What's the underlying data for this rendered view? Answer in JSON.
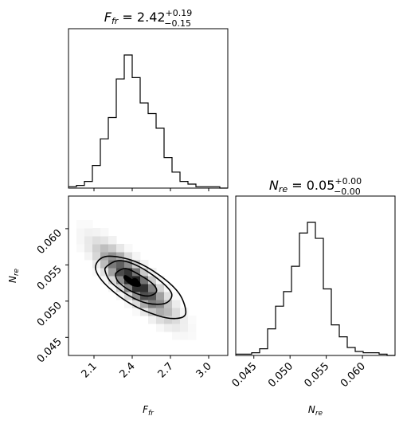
{
  "chart_data": [
    {
      "type": "histogram",
      "panel": "top-left",
      "title_main": "F",
      "title_sub": "fr",
      "title_value": " = 2.42",
      "title_plus": "+0.19",
      "title_minus": "−0.15",
      "x_range": [
        1.9,
        3.15
      ],
      "bin_edges_start": 1.9,
      "bin_width": 0.0625,
      "counts": [
        1,
        2,
        5,
        17,
        37,
        53,
        82,
        100,
        83,
        64,
        56,
        45,
        23,
        12,
        5,
        3,
        1,
        1,
        1,
        0
      ]
    },
    {
      "type": "histogram",
      "panel": "bottom-right",
      "title_main": "N",
      "title_sub": "re",
      "title_value": " = 0.05",
      "title_plus": "+0.00",
      "title_minus": "−0.00",
      "xlabel_main": "N",
      "xlabel_sub": "re",
      "x_range": [
        0.0425,
        0.0645
      ],
      "xticks": [
        "0.045",
        "0.050",
        "0.055",
        "0.060"
      ],
      "xtick_values": [
        0.045,
        0.05,
        0.055,
        0.06
      ],
      "bin_edges_start": 0.0425,
      "bin_width": 0.0011,
      "counts": [
        1,
        1,
        2,
        5,
        20,
        37,
        48,
        67,
        92,
        100,
        88,
        50,
        23,
        14,
        6,
        3,
        2,
        2,
        1,
        0
      ]
    },
    {
      "type": "contour",
      "panel": "bottom-left",
      "xlabel_main": "F",
      "xlabel_sub": "fr",
      "ylabel_main": "N",
      "ylabel_sub": "re",
      "x_range": [
        1.9,
        3.15
      ],
      "y_range": [
        0.0425,
        0.0645
      ],
      "xticks": [
        "2.1",
        "2.4",
        "2.7",
        "3.0"
      ],
      "xtick_values": [
        2.1,
        2.4,
        2.7,
        3.0
      ],
      "yticks": [
        "0.045",
        "0.050",
        "0.055",
        "0.060"
      ],
      "ytick_values": [
        0.045,
        0.05,
        0.055,
        0.06
      ],
      "peak": [
        2.42,
        0.0527
      ],
      "contours": [
        [
          [
            2.42,
            0.0527
          ],
          [
            2.35,
            0.0535
          ],
          [
            2.34,
            0.0531
          ],
          [
            2.4,
            0.0522
          ],
          [
            2.46,
            0.0521
          ],
          [
            2.45,
            0.0527
          ]
        ],
        [
          [
            2.28,
            0.054
          ],
          [
            2.35,
            0.0545
          ],
          [
            2.45,
            0.0537
          ],
          [
            2.56,
            0.0524
          ],
          [
            2.59,
            0.0513
          ],
          [
            2.52,
            0.0507
          ],
          [
            2.4,
            0.0513
          ],
          [
            2.3,
            0.0525
          ],
          [
            2.27,
            0.0534
          ]
        ],
        [
          [
            2.2,
            0.0548
          ],
          [
            2.3,
            0.0556
          ],
          [
            2.45,
            0.0548
          ],
          [
            2.62,
            0.0528
          ],
          [
            2.71,
            0.051
          ],
          [
            2.66,
            0.0497
          ],
          [
            2.52,
            0.0497
          ],
          [
            2.38,
            0.0507
          ],
          [
            2.24,
            0.0525
          ],
          [
            2.19,
            0.054
          ]
        ],
        [
          [
            2.13,
            0.0555
          ],
          [
            2.22,
            0.0562
          ],
          [
            2.42,
            0.0555
          ],
          [
            2.62,
            0.0535
          ],
          [
            2.77,
            0.051
          ],
          [
            2.82,
            0.0483
          ],
          [
            2.74,
            0.0476
          ],
          [
            2.6,
            0.048
          ],
          [
            2.4,
            0.0495
          ],
          [
            2.22,
            0.0518
          ],
          [
            2.12,
            0.054
          ]
        ]
      ]
    }
  ]
}
